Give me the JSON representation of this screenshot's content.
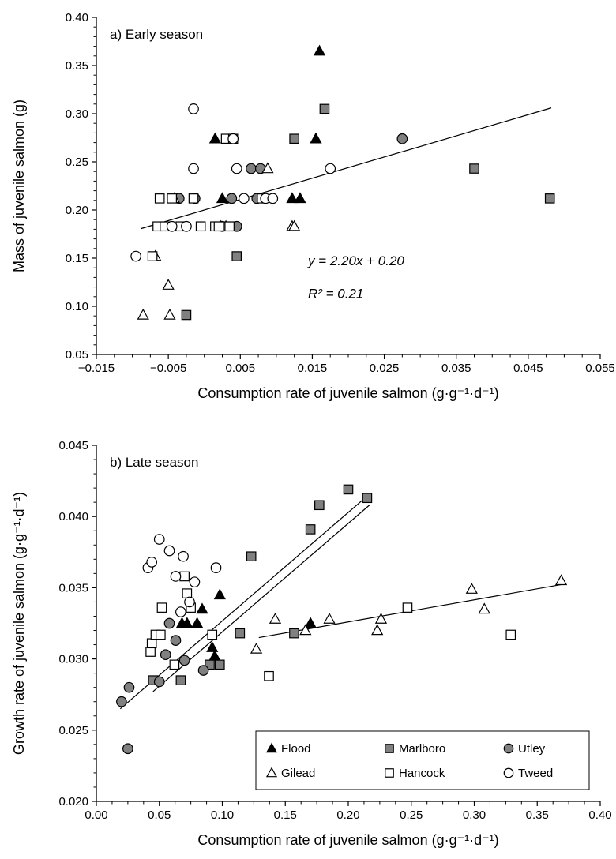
{
  "colors": {
    "flood": "#000000",
    "marlboro": "#808080",
    "utley": "#909090",
    "gilead": "#ffffff",
    "hancock": "#ffffff",
    "tweed": "#ffffff",
    "stroke": "#000000"
  },
  "chart_data": [
    {
      "type": "scatter",
      "panel_label": "a) Early season",
      "title": "",
      "xlabel": "Consumption rate of juvenile salmon (g·g⁻¹·d⁻¹)",
      "ylabel": "Mass of juvenile salmon (g)",
      "xlim": [
        -0.015,
        0.055
      ],
      "ylim": [
        0.05,
        0.4
      ],
      "x_ticks": [
        -0.015,
        -0.005,
        0.005,
        0.015,
        0.025,
        0.035,
        0.045,
        0.055
      ],
      "x_tick_labels": [
        "−0.015",
        "−0.005",
        "0.005",
        "0.015",
        "0.025",
        "0.035",
        "0.045",
        "0.055"
      ],
      "y_ticks": [
        0.05,
        0.1,
        0.15,
        0.2,
        0.25,
        0.3,
        0.35,
        0.4
      ],
      "y_tick_labels": [
        "0.05",
        "0.10",
        "0.15",
        "0.20",
        "0.25",
        "0.30",
        "0.35",
        "0.40"
      ],
      "annotation_equation": "y = 2.20x + 0.20",
      "annotation_r2": "R² = 0.21",
      "fit_lines": [
        {
          "x": [
            -0.0088,
            0.0482
          ],
          "slope": 2.2,
          "intercept": 0.2
        }
      ],
      "series": [
        {
          "name": "Flood",
          "marker": "triangle",
          "fill": "black",
          "x": [
            0.0015,
            0.0025,
            0.003,
            0.0023,
            0.0122,
            0.0133,
            0.0155,
            0.016
          ],
          "y": [
            0.274,
            0.212,
            0.183,
            0.183,
            0.212,
            0.212,
            0.274,
            0.365
          ]
        },
        {
          "name": "Marlboro",
          "marker": "square",
          "fill": "gray",
          "x": [
            0.0125,
            0.0167,
            0.0045,
            0.0035,
            -0.0025,
            0.0375,
            0.048
          ],
          "y": [
            0.274,
            0.305,
            0.152,
            0.183,
            0.091,
            0.243,
            0.212
          ]
        },
        {
          "name": "Utley",
          "marker": "circle",
          "fill": "gray",
          "x": [
            -0.0035,
            -0.0013,
            0.0025,
            0.0038,
            0.0045,
            0.0065,
            0.0073,
            0.0078,
            0.0275
          ],
          "y": [
            0.212,
            0.212,
            0.183,
            0.212,
            0.183,
            0.243,
            0.212,
            0.243,
            0.274
          ]
        },
        {
          "name": "Gilead",
          "marker": "triangle",
          "fill": "white",
          "x": [
            -0.0085,
            -0.0068,
            -0.005,
            -0.0048,
            -0.0042,
            0.0088,
            0.0122,
            0.0125
          ],
          "y": [
            0.091,
            0.152,
            0.122,
            0.091,
            0.212,
            0.243,
            0.183,
            0.183
          ]
        },
        {
          "name": "Hancock",
          "marker": "square",
          "fill": "white",
          "x": [
            -0.0072,
            -0.0065,
            -0.0062,
            -0.0055,
            -0.0045,
            -0.0033,
            -0.0015,
            -0.0005,
            0.0015,
            0.002,
            0.003,
            0.0035,
            0.004,
            0.008
          ],
          "y": [
            0.152,
            0.183,
            0.212,
            0.183,
            0.212,
            0.183,
            0.212,
            0.183,
            0.183,
            0.183,
            0.274,
            0.183,
            0.274,
            0.212
          ]
        },
        {
          "name": "Tweed",
          "marker": "circle",
          "fill": "white",
          "x": [
            -0.0095,
            -0.0045,
            -0.0015,
            -0.0015,
            -0.0025,
            0.004,
            0.0045,
            0.0055,
            0.0085,
            0.0095,
            0.0175
          ],
          "y": [
            0.152,
            0.183,
            0.243,
            0.305,
            0.183,
            0.274,
            0.243,
            0.212,
            0.212,
            0.212,
            0.243
          ]
        }
      ]
    },
    {
      "type": "scatter",
      "panel_label": "b) Late season",
      "title": "",
      "xlabel": "Consumption rate of juvenile salmon (g·g⁻¹·d⁻¹)",
      "ylabel": "Growth rate of juvenile salmon (g·g⁻¹·d⁻¹)",
      "xlim": [
        0.0,
        0.4
      ],
      "ylim": [
        0.02,
        0.045
      ],
      "x_ticks": [
        0.0,
        0.05,
        0.1,
        0.15,
        0.2,
        0.25,
        0.3,
        0.35,
        0.4
      ],
      "x_tick_labels": [
        "0.00",
        "0.05",
        "0.10",
        "0.15",
        "0.20",
        "0.25",
        "0.30",
        "0.35",
        "0.40"
      ],
      "y_ticks": [
        0.02,
        0.025,
        0.03,
        0.035,
        0.04,
        0.045
      ],
      "y_tick_labels": [
        "0.020",
        "0.025",
        "0.030",
        "0.035",
        "0.040",
        "0.045"
      ],
      "fit_lines": [
        {
          "x": [
            0.019,
            0.217
          ],
          "slope": 0.0762,
          "intercept": 0.02505
        },
        {
          "x": [
            0.045,
            0.217
          ],
          "slope": 0.0762,
          "intercept": 0.02428
        },
        {
          "x": [
            0.129,
            0.369
          ],
          "slope": 0.0155,
          "intercept": 0.0295
        }
      ],
      "series": [
        {
          "name": "Flood",
          "marker": "triangle",
          "fill": "black",
          "x": [
            0.068,
            0.072,
            0.08,
            0.084,
            0.092,
            0.094,
            0.098,
            0.17
          ],
          "y": [
            0.0325,
            0.0325,
            0.0325,
            0.0335,
            0.0308,
            0.0302,
            0.0345,
            0.0325
          ]
        },
        {
          "name": "Marlboro",
          "marker": "square",
          "fill": "gray",
          "x": [
            0.045,
            0.067,
            0.09,
            0.098,
            0.114,
            0.123,
            0.157,
            0.17,
            0.177,
            0.2,
            0.215
          ],
          "y": [
            0.0285,
            0.0285,
            0.0296,
            0.0296,
            0.0318,
            0.0372,
            0.0318,
            0.0391,
            0.0408,
            0.0419,
            0.0413
          ]
        },
        {
          "name": "Utley",
          "marker": "circle",
          "fill": "gray",
          "x": [
            0.02,
            0.026,
            0.025,
            0.05,
            0.055,
            0.058,
            0.063,
            0.07,
            0.085
          ],
          "y": [
            0.027,
            0.028,
            0.0237,
            0.0284,
            0.0303,
            0.0325,
            0.0313,
            0.0299,
            0.0292
          ]
        },
        {
          "name": "Gilead",
          "marker": "triangle",
          "fill": "white",
          "x": [
            0.127,
            0.142,
            0.166,
            0.185,
            0.223,
            0.226,
            0.298,
            0.308,
            0.369
          ],
          "y": [
            0.0307,
            0.0328,
            0.032,
            0.0328,
            0.032,
            0.0328,
            0.0349,
            0.0335,
            0.0355
          ]
        },
        {
          "name": "Hancock",
          "marker": "square",
          "fill": "white",
          "x": [
            0.043,
            0.044,
            0.047,
            0.051,
            0.052,
            0.062,
            0.07,
            0.072,
            0.075,
            0.092,
            0.137,
            0.247,
            0.329
          ],
          "y": [
            0.0305,
            0.0311,
            0.0317,
            0.0317,
            0.0336,
            0.0296,
            0.0358,
            0.0346,
            0.0336,
            0.0317,
            0.0288,
            0.0336,
            0.0317
          ]
        },
        {
          "name": "Tweed",
          "marker": "circle",
          "fill": "white",
          "x": [
            0.041,
            0.044,
            0.05,
            0.058,
            0.063,
            0.067,
            0.069,
            0.074,
            0.078,
            0.095
          ],
          "y": [
            0.0364,
            0.0368,
            0.0384,
            0.0376,
            0.0358,
            0.0333,
            0.0372,
            0.034,
            0.0354,
            0.0364
          ]
        }
      ],
      "legend": {
        "placement": "bottom-right",
        "items": [
          {
            "name": "Flood",
            "marker": "triangle",
            "fill": "black"
          },
          {
            "name": "Marlboro",
            "marker": "square",
            "fill": "gray"
          },
          {
            "name": "Utley",
            "marker": "circle",
            "fill": "gray"
          },
          {
            "name": "Gilead",
            "marker": "triangle",
            "fill": "white"
          },
          {
            "name": "Hancock",
            "marker": "square",
            "fill": "white"
          },
          {
            "name": "Tweed",
            "marker": "circle",
            "fill": "white"
          }
        ]
      }
    }
  ]
}
